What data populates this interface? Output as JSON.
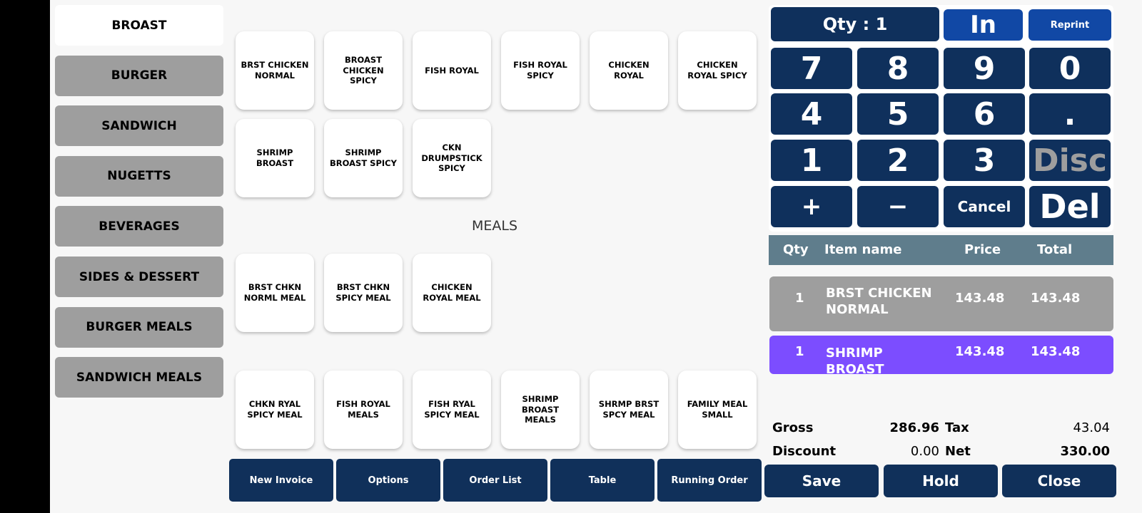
{
  "categories": [
    "BROAST",
    "BURGER",
    "SANDWICH",
    "NUGETTS",
    "BEVERAGES",
    "SIDES & DESSERT",
    "BURGER MEALS",
    "SANDWICH MEALS"
  ],
  "selected_category": "BROAST",
  "products": {
    "row1": [
      "BRST CHICKEN NORMAL",
      "BROAST CHICKEN SPICY",
      "FISH ROYAL",
      "FISH ROYAL SPICY",
      "CHICKEN ROYAL",
      "CHICKEN ROYAL SPICY"
    ],
    "row2": [
      "SHRIMP BROAST",
      "SHRIMP BROAST SPICY",
      "CKN DRUMPSTICK SPICY"
    ],
    "meals_label": "MEALS",
    "row3": [
      "BRST CHKN NORML MEAL",
      "BRST CHKN SPICY MEAL",
      "CHICKEN ROYAL MEAL"
    ],
    "row4": [
      "CHKN RYAL SPICY MEAL",
      "FISH ROYAL MEALS",
      "FISH RYAL SPICY MEAL",
      "SHRIMP BROAST MEALS",
      "SHRMP BRST SPCY MEAL",
      "FAMILY MEAL SMALL"
    ]
  },
  "bottom_buttons": [
    "New Invoice",
    "Options",
    "Order List",
    "Table",
    "Running Order"
  ],
  "keypad": {
    "qty": "Qty : 1",
    "in": "In",
    "reprint": "Reprint",
    "keys": [
      "7",
      "8",
      "9",
      "0",
      "4",
      "5",
      "6",
      ".",
      "1",
      "2",
      "3",
      "Disc",
      "+",
      "−",
      "Cancel",
      "Del"
    ]
  },
  "table": {
    "headers": [
      "Qty",
      "Item name",
      "Price",
      "Total"
    ],
    "rows": [
      {
        "qty": "1",
        "name": "BRST CHICKEN NORMAL",
        "price": "143.48",
        "total": "143.48",
        "color": "#9e9e9e"
      },
      {
        "qty": "1",
        "name": "SHRIMP BROAST",
        "price": "143.48",
        "total": "143.48",
        "color": "#7c4dff"
      }
    ]
  },
  "totals": {
    "gross_label": "Gross",
    "gross": "286.96",
    "tax_label": "Tax",
    "tax": "43.04",
    "discount_label": "Discount",
    "discount": "0.00",
    "net_label": "Net",
    "net": "330.00"
  },
  "actions": [
    "Save",
    "Hold",
    "Close"
  ]
}
